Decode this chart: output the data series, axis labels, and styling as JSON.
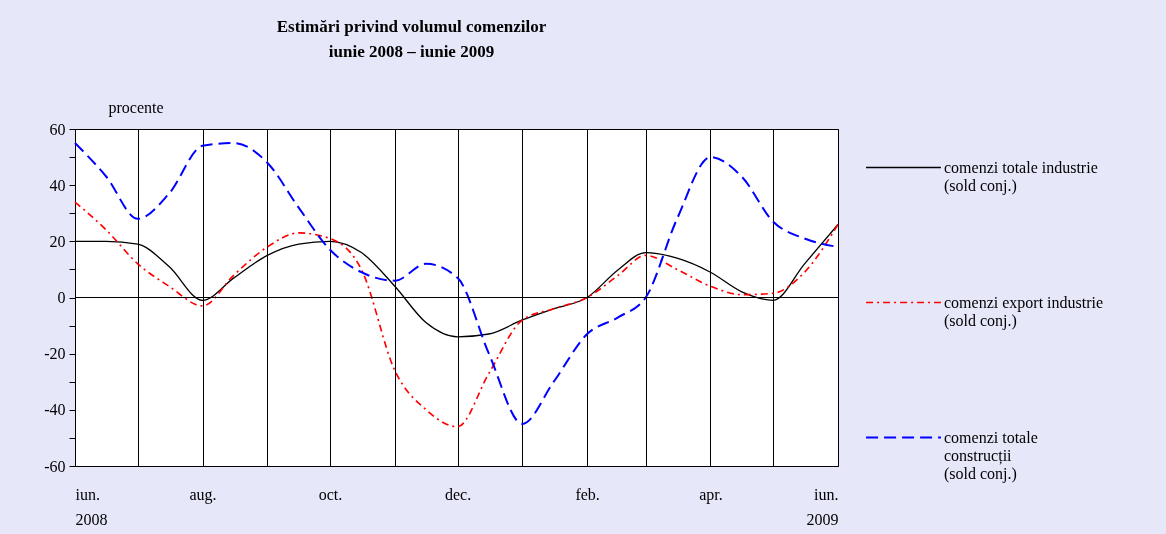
{
  "chart_data": {
    "type": "line",
    "title": "Estimări privind volumul comenzilor",
    "subtitle": "iunie 2008 – iunie 2009",
    "ylabel": "procente",
    "x": [
      "2008-06",
      "2008-06-16",
      "2008-07",
      "2008-07-16",
      "2008-08",
      "2008-08-16",
      "2008-09",
      "2008-09-16",
      "2008-10",
      "2008-10-16",
      "2008-11",
      "2008-11-16",
      "2008-12",
      "2008-12-16",
      "2009-01",
      "2009-01-16",
      "2009-02",
      "2009-02-16",
      "2009-03",
      "2009-03-16",
      "2009-04",
      "2009-04-16",
      "2009-05",
      "2009-05-16",
      "2009-06"
    ],
    "series": [
      {
        "name": "comenzi totale industrie (sold conj.)",
        "color": "#000000",
        "line_style": "solid",
        "values": [
          20,
          20,
          19,
          11,
          -1,
          7,
          15,
          19,
          20,
          16,
          4,
          -9,
          -14,
          -13,
          -8,
          -4,
          0,
          10,
          16,
          14,
          9,
          2,
          -1,
          12,
          26
        ]
      },
      {
        "name": "comenzi export industrie (sold conj.)",
        "color": "#ff0000",
        "line_style": "dotted",
        "values": [
          34,
          24,
          12,
          4,
          -3,
          8,
          18,
          23,
          21,
          10,
          -26,
          -40,
          -46,
          -27,
          -8,
          -4,
          0,
          8,
          15,
          10,
          4,
          1,
          1.5,
          9,
          26
        ]
      },
      {
        "name": "comenzi totale construcții (sold conj.)",
        "color": "#0000ff",
        "line_style": "dashed",
        "values": [
          55,
          43,
          28,
          37,
          54,
          55,
          48,
          32,
          17,
          9,
          6,
          12,
          7,
          -20,
          -45,
          -30,
          -13,
          -7,
          0,
          28,
          50,
          43,
          27,
          21,
          18
        ]
      }
    ],
    "xlim": [
      "2008-06",
      "2009-06"
    ],
    "xticks": [
      {
        "value": "2008-06",
        "label": "iun.\n2008"
      },
      {
        "value": "2008-07",
        "label": null
      },
      {
        "value": "2008-08",
        "label": "aug."
      },
      {
        "value": "2008-09",
        "label": null
      },
      {
        "value": "2008-10",
        "label": "oct."
      },
      {
        "value": "2008-11",
        "label": null
      },
      {
        "value": "2008-12",
        "label": "dec."
      },
      {
        "value": "2009-01",
        "label": null
      },
      {
        "value": "2009-02",
        "label": "feb."
      },
      {
        "value": "2009-03",
        "label": null
      },
      {
        "value": "2009-04",
        "label": "apr."
      },
      {
        "value": "2009-05",
        "label": null
      },
      {
        "value": "2009-06",
        "label": "iun.\n2009"
      }
    ],
    "ylim": [
      -60,
      60
    ],
    "yticks": [
      -60,
      {
        "value": -50,
        "label": null
      },
      -40,
      {
        "value": -30,
        "label": null
      },
      -20,
      {
        "value": -10,
        "label": null
      },
      0,
      {
        "value": 10,
        "label": null
      },
      20,
      {
        "value": 30,
        "label": null
      },
      40,
      {
        "value": 50,
        "label": null
      },
      60
    ],
    "grid": "x",
    "legend": "right",
    "ref_lines": [
      {
        "axis": "y",
        "value": 0
      }
    ]
  }
}
